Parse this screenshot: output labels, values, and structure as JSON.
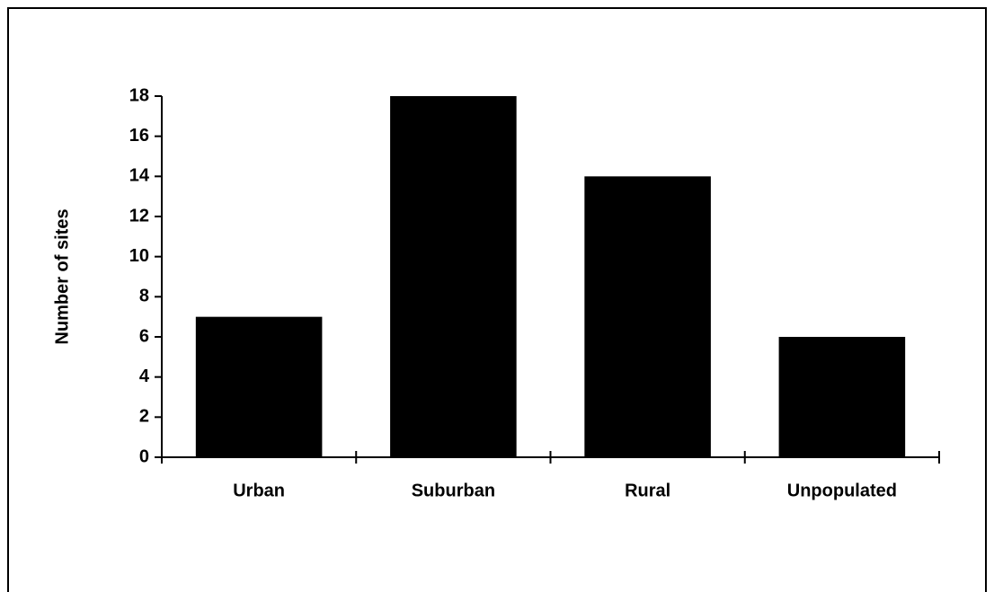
{
  "chart_data": {
    "type": "bar",
    "y_label": "Number of sites",
    "categories": [
      "Urban",
      "Suburban",
      "Rural",
      "Unpopulated"
    ],
    "values": [
      7,
      18,
      14,
      6
    ],
    "color": "#000000",
    "ylim": [
      0,
      18
    ],
    "yticks": [
      0,
      2,
      4,
      6,
      8,
      10,
      12,
      14,
      16,
      18
    ],
    "grid": false
  }
}
